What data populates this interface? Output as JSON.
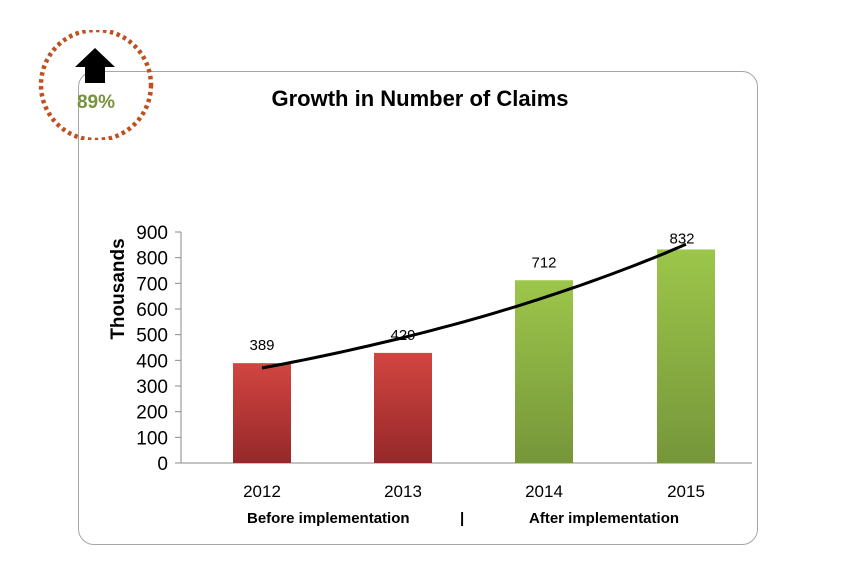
{
  "badge": {
    "icon": "up-arrow-icon",
    "percent_label": "89%",
    "ring_color": "#c0501f",
    "text_color": "#77933c"
  },
  "subtitles": {
    "before": "Before implementation",
    "separator": "|",
    "after": "After implementation"
  },
  "chart_data": {
    "type": "bar",
    "title": "Growth in Number of Claims",
    "xlabel": "",
    "ylabel": "Thousands",
    "categories": [
      "2012",
      "2013",
      "2014",
      "2015"
    ],
    "values": [
      389,
      429,
      712,
      832
    ],
    "data_labels": [
      "389",
      "429",
      "712",
      "832"
    ],
    "bar_colors": [
      "#c0392b",
      "#c0392b",
      "#8db33a",
      "#8db33a"
    ],
    "colors": {
      "before": "#c0392b",
      "after": "#8db33a"
    },
    "ylim": [
      0,
      900
    ],
    "yticks": [
      0,
      100,
      200,
      300,
      400,
      500,
      600,
      700,
      800,
      900
    ],
    "ytick_labels": [
      "0",
      "100",
      "200",
      "300",
      "400",
      "500",
      "600",
      "700",
      "800",
      "900"
    ],
    "trendline": {
      "type": "exponential",
      "start_value": 370,
      "end_value": 852
    },
    "grid": false,
    "legend": "none"
  }
}
